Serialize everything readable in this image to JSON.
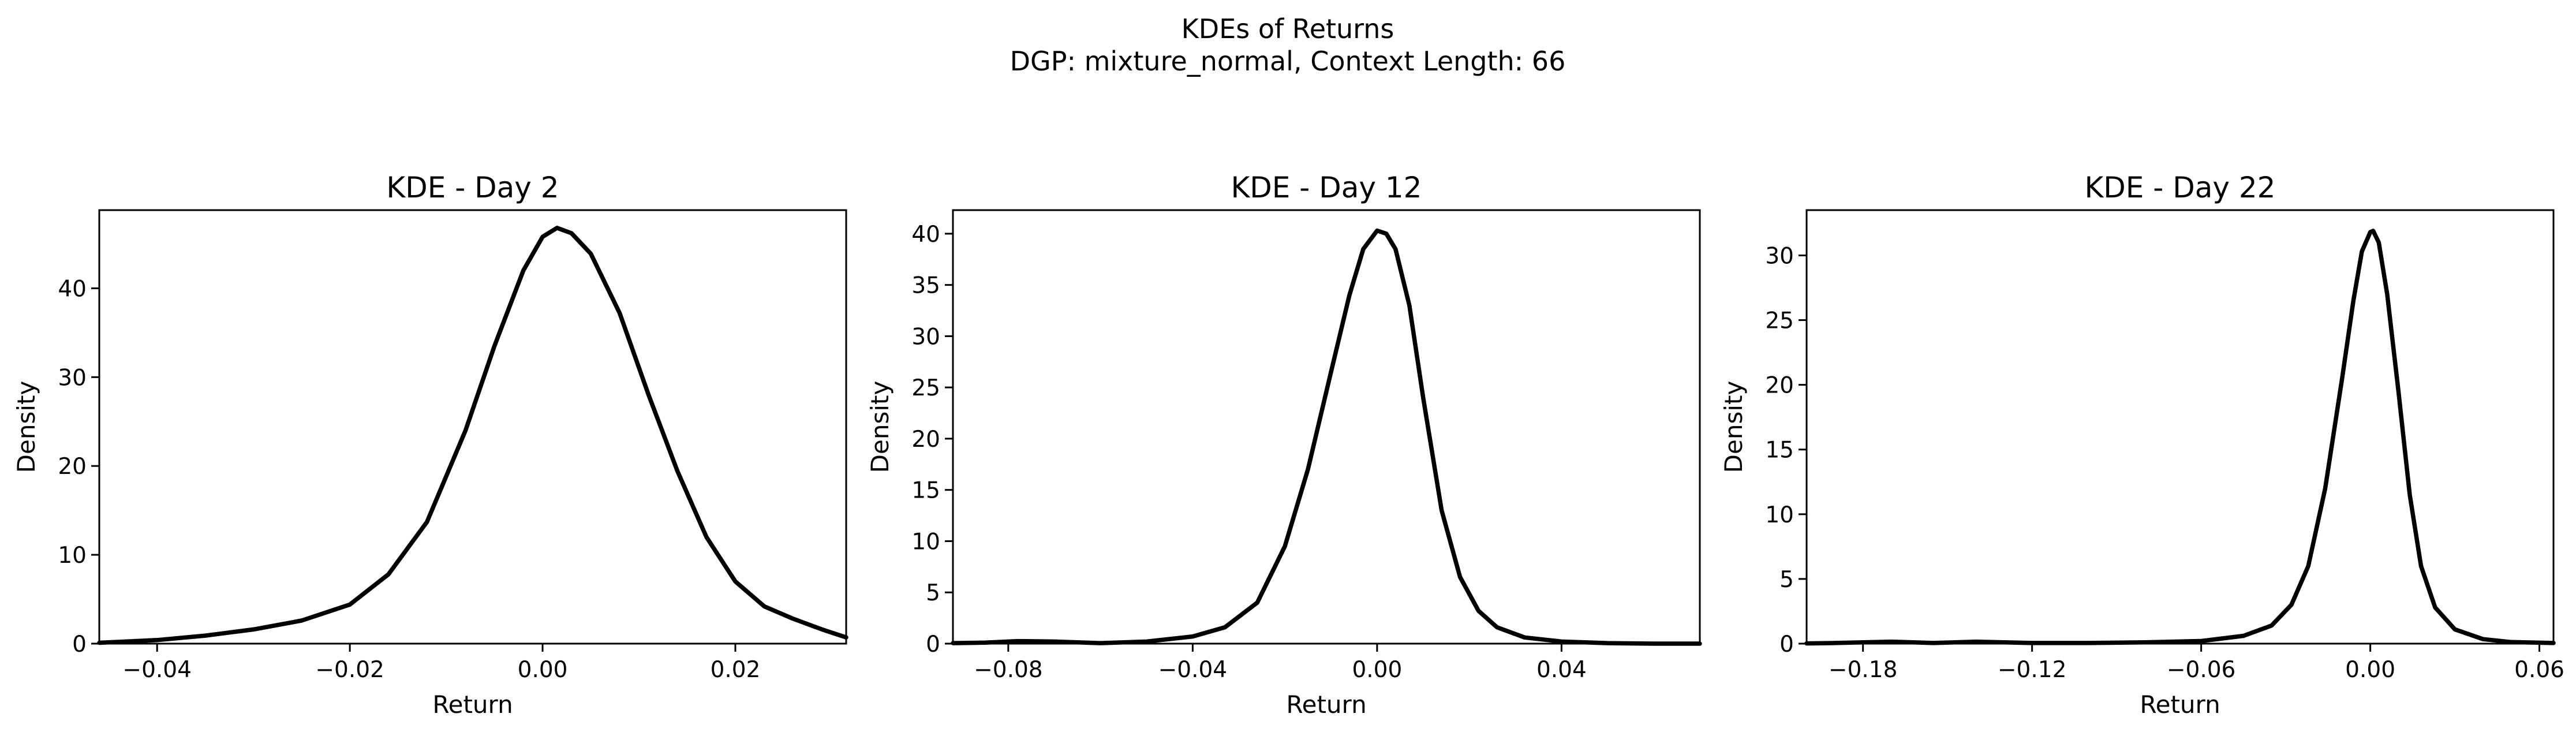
{
  "figure": {
    "title_line1": "KDEs of Returns",
    "title_line2": "DGP: mixture_normal, Context Length: 66"
  },
  "chart_data": [
    {
      "type": "line",
      "title": "KDE - Day 2",
      "xlabel": "Return",
      "ylabel": "Density",
      "xlim": [
        -0.046,
        0.0315
      ],
      "ylim": [
        0,
        48.8
      ],
      "xticks": [
        -0.04,
        -0.02,
        0.0,
        0.02
      ],
      "xtick_labels": [
        "−0.04",
        "−0.02",
        "0.00",
        "0.02"
      ],
      "yticks": [
        0,
        10,
        20,
        30,
        40
      ],
      "ytick_labels": [
        "0",
        "10",
        "20",
        "30",
        "40"
      ],
      "grid": false,
      "color": "#000000",
      "x": [
        -0.046,
        -0.04,
        -0.035,
        -0.03,
        -0.025,
        -0.02,
        -0.016,
        -0.012,
        -0.008,
        -0.005,
        -0.002,
        0.0,
        0.0015,
        0.003,
        0.005,
        0.008,
        0.011,
        0.014,
        0.017,
        0.02,
        0.023,
        0.026,
        0.029,
        0.0315
      ],
      "y": [
        0.1,
        0.4,
        0.9,
        1.6,
        2.6,
        4.4,
        7.8,
        13.7,
        24.0,
        33.5,
        42.0,
        45.8,
        46.8,
        46.2,
        43.9,
        37.2,
        28.0,
        19.4,
        12.0,
        7.0,
        4.2,
        2.8,
        1.6,
        0.7
      ]
    },
    {
      "type": "line",
      "title": "KDE - Day 12",
      "xlabel": "Return",
      "ylabel": "Density",
      "xlim": [
        -0.092,
        0.07
      ],
      "ylim": [
        0,
        42.3
      ],
      "xticks": [
        -0.08,
        -0.04,
        0.0,
        0.04
      ],
      "xtick_labels": [
        "−0.08",
        "−0.04",
        "0.00",
        "0.04"
      ],
      "yticks": [
        0,
        5,
        10,
        15,
        20,
        25,
        30,
        35,
        40
      ],
      "ytick_labels": [
        "0",
        "5",
        "10",
        "15",
        "20",
        "25",
        "30",
        "35",
        "40"
      ],
      "grid": false,
      "color": "#000000",
      "x": [
        -0.092,
        -0.085,
        -0.078,
        -0.07,
        -0.06,
        -0.05,
        -0.04,
        -0.033,
        -0.026,
        -0.02,
        -0.015,
        -0.01,
        -0.006,
        -0.003,
        0.0,
        0.002,
        0.004,
        0.007,
        0.01,
        0.014,
        0.018,
        0.022,
        0.026,
        0.032,
        0.04,
        0.05,
        0.06,
        0.07
      ],
      "y": [
        0.05,
        0.1,
        0.25,
        0.2,
        0.05,
        0.2,
        0.7,
        1.6,
        4.0,
        9.5,
        17.0,
        26.5,
        34.0,
        38.5,
        40.3,
        40.0,
        38.5,
        33.0,
        24.0,
        13.0,
        6.5,
        3.2,
        1.6,
        0.6,
        0.2,
        0.05,
        0.0,
        0.0
      ]
    },
    {
      "type": "line",
      "title": "KDE - Day 22",
      "xlabel": "Return",
      "ylabel": "Density",
      "xlim": [
        -0.2,
        0.065
      ],
      "ylim": [
        0,
        33.5
      ],
      "xticks": [
        -0.18,
        -0.12,
        -0.06,
        0.0,
        0.06
      ],
      "xtick_labels": [
        "−0.18",
        "−0.12",
        "−0.06",
        "0.00",
        "0.06"
      ],
      "yticks": [
        0,
        5,
        10,
        15,
        20,
        25,
        30
      ],
      "ytick_labels": [
        "0",
        "5",
        "10",
        "15",
        "20",
        "25",
        "30"
      ],
      "grid": false,
      "color": "#000000",
      "x": [
        -0.2,
        -0.19,
        -0.17,
        -0.155,
        -0.14,
        -0.12,
        -0.1,
        -0.08,
        -0.06,
        -0.045,
        -0.035,
        -0.028,
        -0.022,
        -0.016,
        -0.01,
        -0.006,
        -0.003,
        0.0,
        0.001,
        0.003,
        0.006,
        0.01,
        0.014,
        0.018,
        0.023,
        0.03,
        0.04,
        0.05,
        0.065
      ],
      "y": [
        0.02,
        0.05,
        0.15,
        0.05,
        0.15,
        0.05,
        0.05,
        0.1,
        0.2,
        0.6,
        1.4,
        3.0,
        6.0,
        12.0,
        20.5,
        26.5,
        30.3,
        31.8,
        31.9,
        31.0,
        27.0,
        19.5,
        11.5,
        6.0,
        2.8,
        1.1,
        0.35,
        0.12,
        0.05
      ]
    }
  ]
}
